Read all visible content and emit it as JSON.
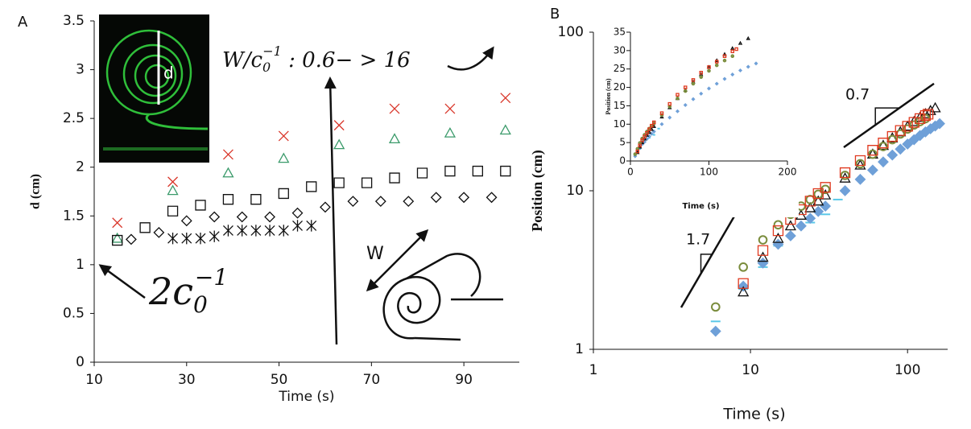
{
  "chart_data": [
    {
      "type": "scatter",
      "panel_label": "A",
      "xlabel": "Time (s)",
      "ylabel": "d (cm)",
      "xlim": [
        10,
        102
      ],
      "ylim": [
        0,
        3.5
      ],
      "xticks": [
        10,
        30,
        50,
        70,
        90
      ],
      "yticks": [
        0,
        0.5,
        1,
        1.5,
        2,
        2.5,
        3,
        3.5
      ],
      "inset_label": "d",
      "roll_label": "W",
      "formula": [
        "W/c",
        "0",
        "−1",
        " : 0.6− > 16"
      ],
      "curvature": [
        "2c",
        "0",
        "−1"
      ],
      "series": [
        {
          "marker": "x",
          "color": "#d9372b",
          "x": [
            15,
            27,
            39,
            51,
            63,
            75,
            87,
            99
          ],
          "values": [
            1.43,
            1.85,
            2.13,
            2.32,
            2.43,
            2.6,
            2.6,
            2.71
          ]
        },
        {
          "marker": "triangle",
          "color": "#3a9a6a",
          "x": [
            15,
            27,
            39,
            51,
            63,
            75,
            87,
            99
          ],
          "values": [
            1.27,
            1.76,
            1.94,
            2.09,
            2.23,
            2.29,
            2.35,
            2.38
          ]
        },
        {
          "marker": "square",
          "color": "#111111",
          "x": [
            15,
            21,
            27,
            33,
            39,
            45,
            51,
            57,
            63,
            69,
            75,
            81,
            87,
            93,
            99
          ],
          "values": [
            1.25,
            1.38,
            1.55,
            1.61,
            1.67,
            1.67,
            1.73,
            1.8,
            1.84,
            1.84,
            1.89,
            1.94,
            1.96,
            1.96,
            1.96
          ]
        },
        {
          "marker": "diamond",
          "color": "#111111",
          "x": [
            18,
            24,
            30,
            36,
            42,
            48,
            54,
            60,
            66,
            72,
            78,
            84,
            90,
            96
          ],
          "values": [
            1.26,
            1.33,
            1.45,
            1.49,
            1.49,
            1.49,
            1.53,
            1.59,
            1.65,
            1.65,
            1.65,
            1.69,
            1.69,
            1.69
          ]
        },
        {
          "marker": "asterisk",
          "color": "#111111",
          "x": [
            27,
            30,
            33,
            36,
            39,
            42,
            45,
            48,
            51,
            54,
            57
          ],
          "values": [
            1.27,
            1.27,
            1.27,
            1.29,
            1.35,
            1.35,
            1.35,
            1.35,
            1.35,
            1.4,
            1.4
          ]
        }
      ]
    },
    {
      "type": "scatter",
      "panel_label": "B",
      "xlabel": "Time (s)",
      "ylabel": "Position (cm)",
      "xscale": "log",
      "yscale": "log",
      "xlim": [
        1,
        180
      ],
      "ylim": [
        1,
        100
      ],
      "xticks": [
        1,
        10,
        100
      ],
      "yticks": [
        1,
        10,
        100
      ],
      "slope_labels": [
        0.7,
        1.7
      ],
      "series": [
        {
          "marker": "dash",
          "color": "#5bc8e8",
          "x": [
            6,
            9,
            12,
            15,
            18,
            24,
            30,
            36
          ],
          "values": [
            1.5,
            2.4,
            3.3,
            4.5,
            5.2,
            6.3,
            7.1,
            8.8
          ]
        },
        {
          "marker": "diamond",
          "filled": true,
          "color": "#6fa0d8",
          "x": [
            6,
            9,
            12,
            15,
            18,
            21,
            24,
            27,
            30,
            40,
            50,
            60,
            70,
            80,
            90,
            100,
            110,
            120,
            130,
            140,
            150,
            160
          ],
          "values": [
            1.3,
            2.5,
            3.5,
            4.6,
            5.2,
            6,
            6.7,
            7.4,
            8,
            10,
            11.8,
            13.5,
            15.2,
            16.8,
            18.3,
            19.7,
            21,
            22.3,
            23.5,
            24.6,
            25.6,
            26.5
          ]
        },
        {
          "marker": "triangle",
          "color": "#111111",
          "x": [
            9,
            12,
            15,
            18,
            21,
            24,
            27,
            30,
            40,
            50,
            60,
            70,
            80,
            90,
            100,
            110,
            120,
            130,
            140,
            150
          ],
          "values": [
            2.3,
            3.8,
            5,
            6,
            7,
            7.8,
            8.6,
            9.4,
            12,
            14.5,
            17,
            19.3,
            21.5,
            23.5,
            25.5,
            27.3,
            29,
            30.6,
            32,
            33.3
          ]
        },
        {
          "marker": "circle",
          "color": "#7a8c3c",
          "x": [
            6,
            9,
            12,
            15,
            18,
            21,
            24,
            27,
            30,
            40,
            50,
            60,
            70,
            80,
            90,
            100,
            110,
            120,
            130
          ],
          "values": [
            1.85,
            3.3,
            4.9,
            6.1,
            7.1,
            8,
            8.8,
            9.5,
            10.2,
            12.5,
            14.8,
            17,
            19,
            21,
            22.8,
            24.5,
            26,
            27.3,
            28.5
          ]
        },
        {
          "marker": "square",
          "color": "#e0381e",
          "x": [
            9,
            12,
            15,
            18,
            21,
            24,
            27,
            30,
            40,
            50,
            60,
            70,
            80,
            90,
            100,
            110,
            120,
            130,
            135
          ],
          "values": [
            2.6,
            4.2,
            5.6,
            6.6,
            7.6,
            8.6,
            9.6,
            10.5,
            13,
            15.5,
            18,
            20,
            22,
            24,
            25.5,
            27,
            28.5,
            29.8,
            30.4
          ]
        }
      ]
    },
    {
      "type": "scatter",
      "xlabel": "Time (s)",
      "ylabel": "Position (cm)",
      "xlim": [
        0,
        200
      ],
      "ylim": [
        0,
        35
      ],
      "xticks": [
        0,
        100,
        200
      ],
      "yticks": [
        0,
        5,
        10,
        15,
        20,
        25,
        30,
        35
      ]
    }
  ]
}
